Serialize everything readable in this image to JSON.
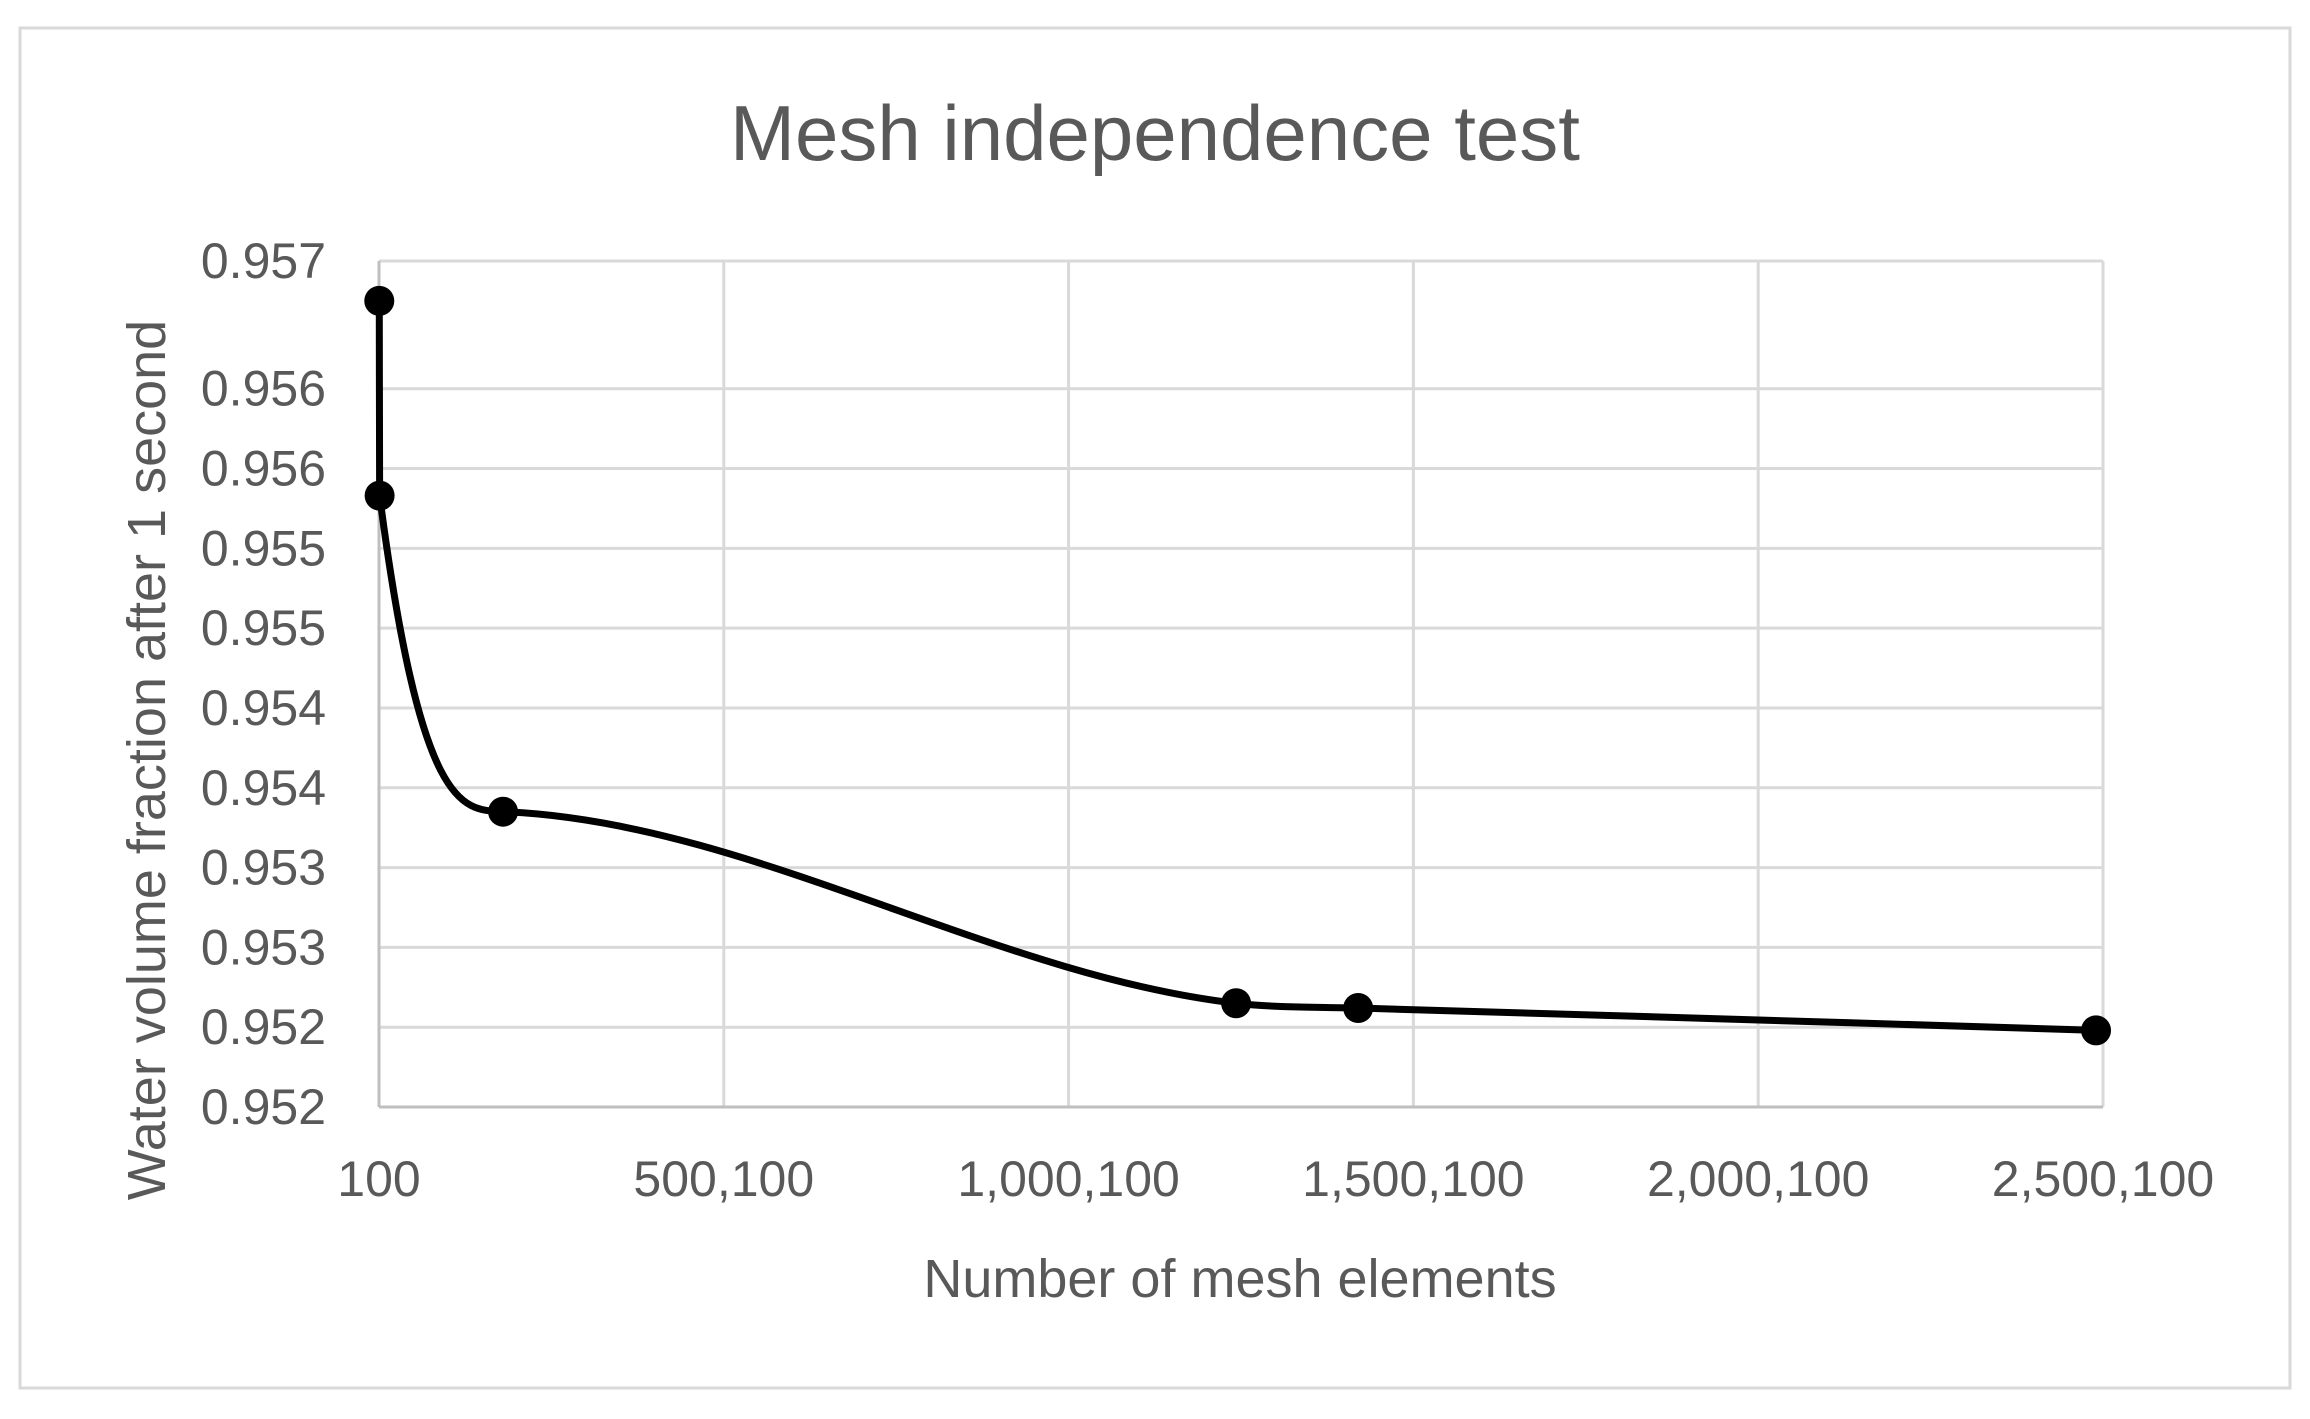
{
  "chart_data": {
    "type": "line",
    "title": "Mesh independence test",
    "xlabel": "Number of mesh elements",
    "ylabel": "Water volume fraction after 1 second",
    "xlim": [
      100,
      2500100
    ],
    "ylim": [
      0.9517,
      0.957
    ],
    "x_ticks": [
      100,
      500100,
      1000100,
      1500100,
      2000100,
      2500100
    ],
    "x_tick_labels": [
      "100",
      "500,100",
      "1,000,100",
      "1,500,100",
      "2,000,100",
      "2,500,100"
    ],
    "y_ticks": [
      0.9517,
      0.9522,
      0.9527,
      0.9532,
      0.9537,
      0.9542,
      0.9547,
      0.9552,
      0.9557,
      0.9562,
      0.957
    ],
    "y_tick_labels": [
      "0.952",
      "0.952",
      "0.953",
      "0.953",
      "0.954",
      "0.954",
      "0.955",
      "0.955",
      "0.956",
      "0.956",
      "0.957"
    ],
    "grid": true,
    "legend": "none",
    "line_color": "#000000",
    "grid_color": "#d9d9d9",
    "series": [
      {
        "x": [
          500,
          1000,
          180000,
          1243000,
          1420000,
          2490000
        ],
        "y": [
          0.95675,
          0.95553,
          0.95355,
          0.95235,
          0.95232,
          0.95218
        ]
      }
    ]
  }
}
